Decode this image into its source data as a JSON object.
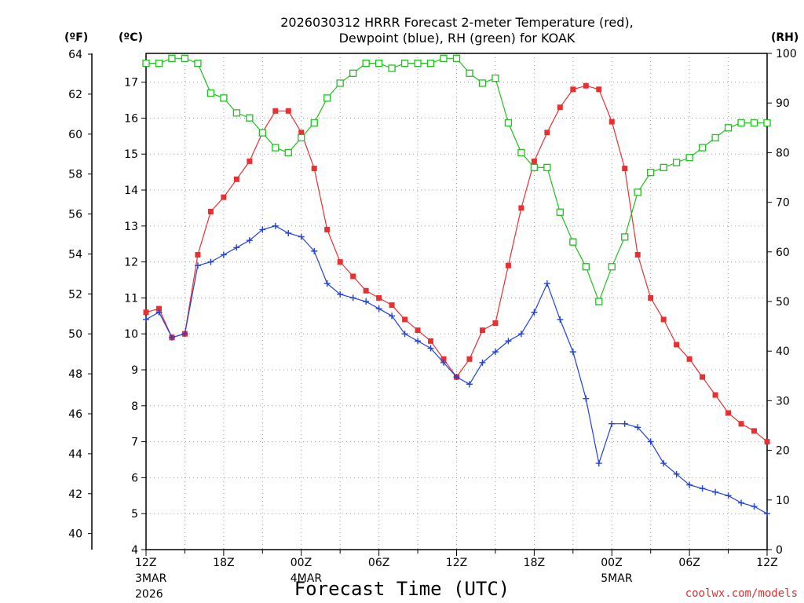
{
  "chart_data": {
    "type": "line",
    "title_line1": "2026030312 HRRR Forecast 2-meter Temperature (red),",
    "title_line2": "Dewpoint (blue), RH (green) for KOAK",
    "xlabel": "Forecast Time (UTC)",
    "credit": "coolwx.com/models",
    "unit_f": "(ºF)",
    "unit_c": "(ºC)",
    "unit_rh": "(RH)",
    "x_range": [
      0,
      48
    ],
    "y_left_c_range": [
      4,
      17.8
    ],
    "y_left_f_ticks": [
      "40",
      "42",
      "44",
      "46",
      "48",
      "50",
      "52",
      "54",
      "56",
      "58",
      "60",
      "62",
      "64"
    ],
    "y_left_c_ticks": [
      "4",
      "5",
      "6",
      "7",
      "8",
      "9",
      "10",
      "11",
      "12",
      "13",
      "14",
      "15",
      "16",
      "17"
    ],
    "y_right_rh_range": [
      0,
      100
    ],
    "y_right_rh_ticks": [
      "0",
      "10",
      "20",
      "30",
      "40",
      "50",
      "60",
      "70",
      "80",
      "90",
      "100"
    ],
    "grid": true,
    "x_ticks": [
      {
        "x": 0,
        "label": "12Z",
        "sub1": "3MAR",
        "sub2": "2026"
      },
      {
        "x": 6,
        "label": "18Z",
        "sub1": "",
        "sub2": ""
      },
      {
        "x": 12,
        "label": "00Z",
        "sub1": "4MAR",
        "sub2": ""
      },
      {
        "x": 18,
        "label": "06Z",
        "sub1": "",
        "sub2": ""
      },
      {
        "x": 24,
        "label": "12Z",
        "sub1": "",
        "sub2": ""
      },
      {
        "x": 30,
        "label": "18Z",
        "sub1": "",
        "sub2": ""
      },
      {
        "x": 36,
        "label": "00Z",
        "sub1": "5MAR",
        "sub2": ""
      },
      {
        "x": 42,
        "label": "06Z",
        "sub1": "",
        "sub2": ""
      },
      {
        "x": 48,
        "label": "12Z",
        "sub1": "",
        "sub2": ""
      }
    ],
    "series": [
      {
        "color": "#e83030",
        "marker": "filled-square",
        "axis": "celsius",
        "values": [
          10.6,
          10.7,
          9.9,
          10.0,
          12.2,
          13.4,
          13.8,
          14.3,
          14.8,
          15.6,
          16.2,
          16.2,
          15.6,
          14.6,
          12.9,
          12.0,
          11.6,
          11.2,
          11.0,
          10.8,
          10.4,
          10.1,
          9.8,
          9.3,
          8.8,
          9.3,
          10.1,
          10.3,
          11.9,
          13.5,
          14.8,
          15.6,
          16.3,
          16.8,
          16.9,
          16.8,
          15.9,
          14.6,
          12.2,
          11.0,
          10.4,
          9.7,
          9.3,
          8.8,
          8.3,
          7.8,
          7.5,
          7.3,
          7.0
        ]
      },
      {
        "color": "#2040e0",
        "marker": "plus",
        "axis": "celsius",
        "values": [
          10.4,
          10.6,
          9.9,
          10.0,
          11.9,
          12.0,
          12.2,
          12.4,
          12.6,
          12.9,
          13.0,
          12.8,
          12.7,
          12.3,
          11.4,
          11.1,
          11.0,
          10.9,
          10.7,
          10.5,
          10.0,
          9.8,
          9.6,
          9.2,
          8.8,
          8.6,
          9.2,
          9.5,
          9.8,
          10.0,
          10.6,
          11.4,
          10.4,
          9.5,
          8.2,
          6.4,
          7.5,
          7.5,
          7.4,
          7.0,
          6.4,
          6.1,
          5.8,
          5.7,
          5.6,
          5.5,
          5.3,
          5.2,
          5.0
        ]
      },
      {
        "color": "#20c020",
        "marker": "open-square",
        "axis": "rh",
        "values": [
          98,
          98,
          99,
          99,
          98,
          92,
          91,
          88,
          87,
          84,
          81,
          80,
          83,
          86,
          91,
          94,
          96,
          98,
          98,
          97,
          98,
          98,
          98,
          99,
          99,
          96,
          94,
          95,
          86,
          80,
          77,
          77,
          68,
          62,
          57,
          50,
          57,
          63,
          72,
          76,
          77,
          78,
          79,
          81,
          83,
          85,
          86,
          86,
          86
        ]
      }
    ]
  }
}
